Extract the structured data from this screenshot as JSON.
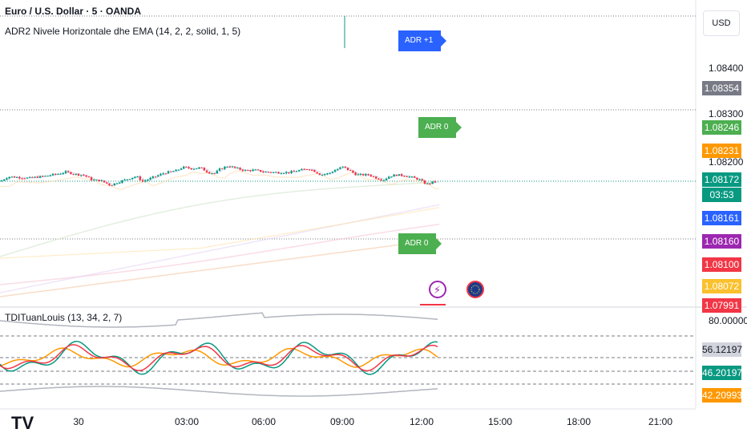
{
  "header": {
    "symbol_line": "Euro / U.S. Dollar · 5 · OANDA",
    "indicator_line": "ADR2 Nivele Horizontale dhe EMA (14, 2, 2, solid, 1, 5)",
    "oscillator_line": "TDITuanLouis (13, 34, 2, 7)"
  },
  "currency_button": "USD",
  "price_axis_labels": [
    "1.08400",
    "1.08300",
    "1.08200"
  ],
  "price_tags": [
    {
      "text": "1.08354",
      "color": "#787b86"
    },
    {
      "text": "1.08246",
      "color": "#4caf50"
    },
    {
      "text": "1.08231",
      "color": "#ff9800"
    },
    {
      "text": "1.08172",
      "color": "#089981"
    },
    {
      "text": "03:53",
      "color": "#089981"
    },
    {
      "text": "1.08161",
      "color": "#2962ff"
    },
    {
      "text": "1.08160",
      "color": "#9c27b0"
    },
    {
      "text": "1.08100",
      "color": "#f23645"
    },
    {
      "text": "1.08072",
      "color": "#fbc02d"
    },
    {
      "text": "1.07991",
      "color": "#f23645"
    }
  ],
  "osc_axis_label": "80.00000",
  "osc_tags": [
    {
      "text": "56.12197",
      "color": "#d1d4dc",
      "fg": "#131722"
    },
    {
      "text": "46.20197",
      "color": "#089981",
      "fg": "#ffffff"
    },
    {
      "text": "42.20993",
      "color": "#ff9800",
      "fg": "#ffffff"
    }
  ],
  "time_labels": [
    "30",
    "03:00",
    "06:00",
    "09:00",
    "12:00",
    "15:00",
    "18:00",
    "21:00"
  ],
  "adr_labels": [
    {
      "text": "ADR +1",
      "color": "#2962ff"
    },
    {
      "text": "ADR 0",
      "color": "#4caf50"
    },
    {
      "text": "ADR 0",
      "color": "#4caf50"
    }
  ],
  "logo_text": "TV",
  "colors": {
    "up": "#089981",
    "down": "#f23645",
    "grid": "#787b86"
  }
}
